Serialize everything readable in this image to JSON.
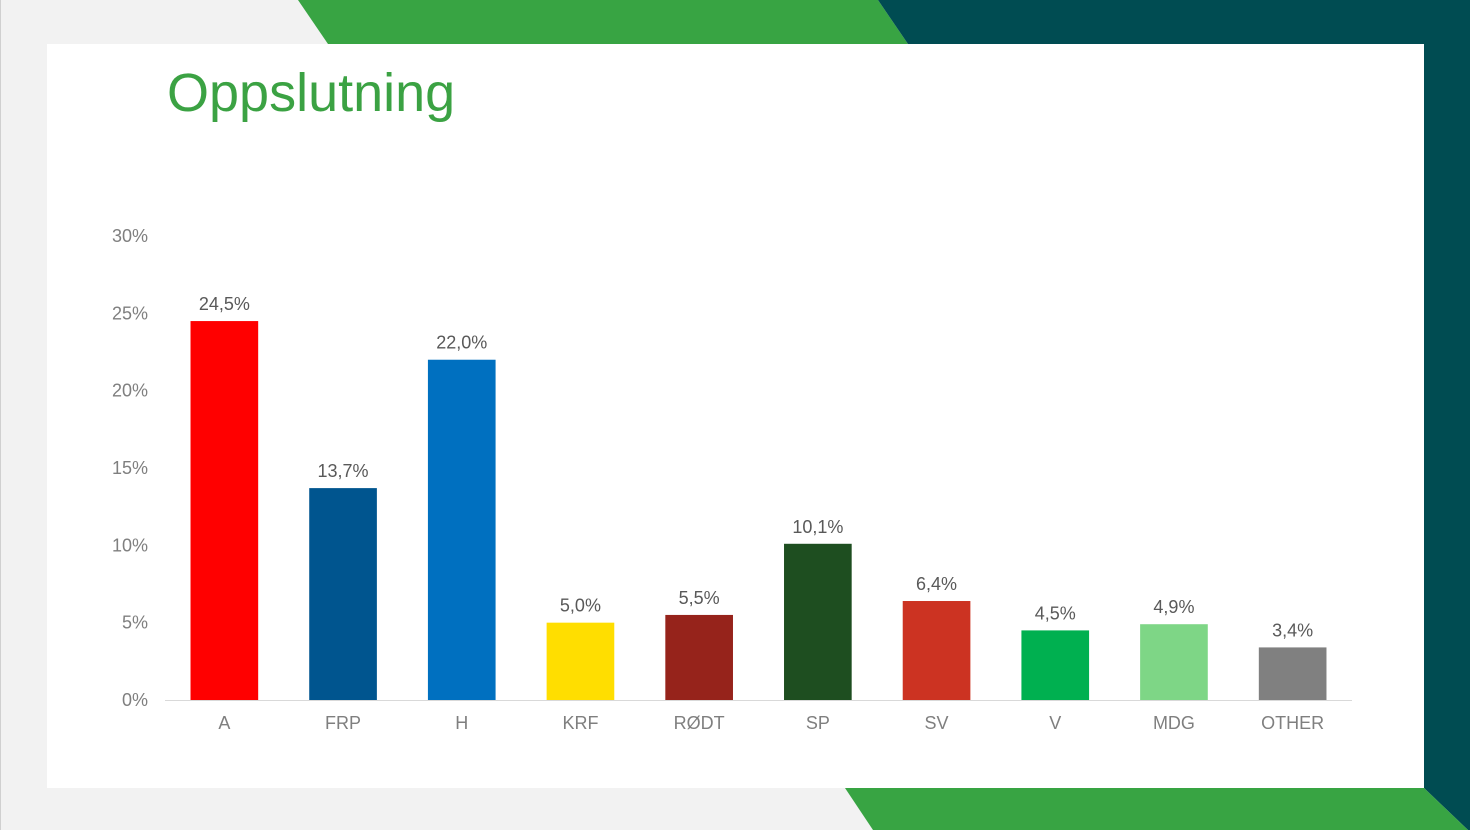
{
  "colors": {
    "background": "#f2f2f2",
    "slide": "#ffffff",
    "accent_green": "#38a443",
    "accent_teal": "#004c52",
    "title": "#3ba243"
  },
  "title": "Oppslutning",
  "chart_data": {
    "type": "bar",
    "title": "",
    "xlabel": "",
    "ylabel": "",
    "categories": [
      "A",
      "FRP",
      "H",
      "KRF",
      "RØDT",
      "SP",
      "SV",
      "V",
      "MDG",
      "OTHER"
    ],
    "values": [
      24.5,
      13.7,
      22.0,
      5.0,
      5.5,
      10.1,
      6.4,
      4.5,
      4.9,
      3.4
    ],
    "data_labels": [
      "24,5%",
      "13,7%",
      "22,0%",
      "5,0%",
      "5,5%",
      "10,1%",
      "6,4%",
      "4,5%",
      "4,9%",
      "3,4%"
    ],
    "bar_colors": [
      "#ff0000",
      "#00558f",
      "#0070c0",
      "#ffde00",
      "#96231b",
      "#1e4e20",
      "#cc3322",
      "#00b050",
      "#7ed686",
      "#808080"
    ],
    "ylim": [
      0,
      30
    ],
    "yticks": [
      0,
      5,
      10,
      15,
      20,
      25,
      30
    ],
    "ytick_labels": [
      "0%",
      "5%",
      "10%",
      "15%",
      "20%",
      "25%",
      "30%"
    ],
    "grid": false,
    "legend": "none"
  }
}
